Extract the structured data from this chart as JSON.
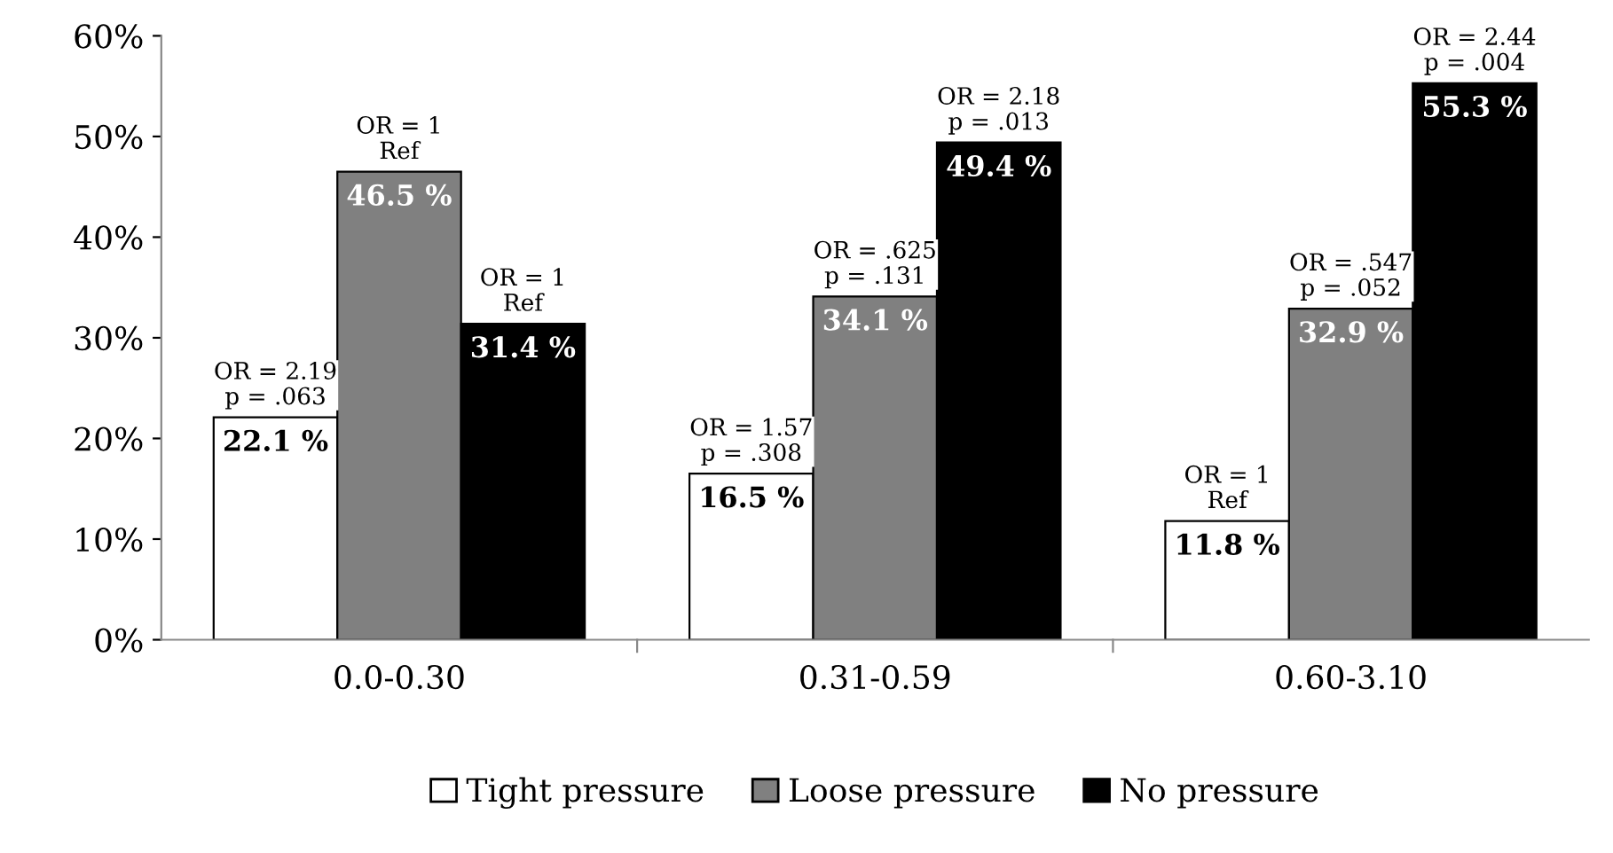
{
  "chart_data": {
    "type": "bar",
    "categories": [
      "0.0-0.30",
      "0.31-0.59",
      "0.60-3.10"
    ],
    "series": [
      {
        "name": "Tight pressure",
        "color": "#ffffff",
        "values": [
          22.1,
          16.5,
          11.8
        ],
        "value_labels": [
          "22.1 %",
          "16.5 %",
          "11.8 %"
        ]
      },
      {
        "name": "Loose pressure",
        "color": "#808080",
        "values": [
          46.5,
          34.1,
          32.9
        ],
        "value_labels": [
          "46.5 %",
          "34.1 %",
          "32.9 %"
        ]
      },
      {
        "name": "No pressure",
        "color": "#000000",
        "values": [
          31.4,
          49.4,
          55.3
        ],
        "value_labels": [
          "31.4 %",
          "49.4 %",
          "55.3 %"
        ]
      }
    ],
    "ylim": [
      0,
      60
    ],
    "yticks": [
      {
        "value": 0,
        "label": "0%"
      },
      {
        "value": 10,
        "label": "10%"
      },
      {
        "value": 20,
        "label": "20%"
      },
      {
        "value": 30,
        "label": "30%"
      },
      {
        "value": 40,
        "label": "40%"
      },
      {
        "value": 50,
        "label": "50%"
      },
      {
        "value": 60,
        "label": "60%"
      }
    ],
    "annotations": [
      "OR = 2.19\np = .063",
      "OR = 1\nRef",
      "OR = 1\nRef",
      "OR = 1.57\np = .308",
      "OR = .625\np = .131",
      "OR = 2.18\np = .013",
      "OR = 1\nRef",
      "OR = .547\np = .052",
      "OR = 2.44\np = .004"
    ],
    "grid": false,
    "legend": "bottom"
  }
}
